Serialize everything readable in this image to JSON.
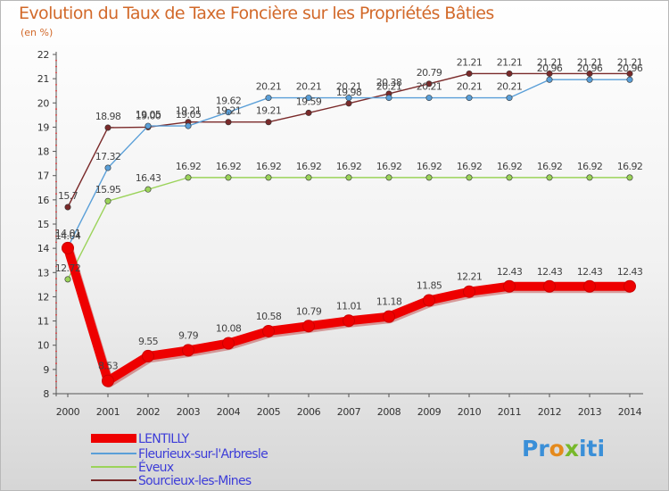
{
  "chart_data": {
    "type": "line",
    "title": "Evolution du Taux de Taxe Foncière sur les Propriétés Bâties",
    "ylabel": "(en %)",
    "xlabel": "",
    "x": [
      "2000",
      "2001",
      "2002",
      "2003",
      "2004",
      "2005",
      "2006",
      "2007",
      "2008",
      "2009",
      "2010",
      "2011",
      "2012",
      "2013",
      "2014"
    ],
    "ylim": [
      8,
      22
    ],
    "yticks": [
      "8",
      "9",
      "10",
      "11",
      "12",
      "13",
      "14",
      "15",
      "16",
      "17",
      "18",
      "19",
      "20",
      "21",
      "22"
    ],
    "grid": false,
    "legend_position": "bottom-left",
    "series": [
      {
        "name": "LENTILLY",
        "color": "#ee0000",
        "values": [
          14.01,
          8.53,
          9.55,
          9.79,
          10.08,
          10.58,
          10.79,
          11.01,
          11.18,
          11.85,
          12.21,
          12.43,
          12.43,
          12.43,
          12.43
        ],
        "labels": [
          "14.01",
          "8.53",
          "9.55",
          "9.79",
          "10.08",
          "10.58",
          "10.79",
          "11.01",
          "11.18",
          "11.85",
          "12.21",
          "12.43",
          "12.43",
          "12.43",
          "12.43"
        ]
      },
      {
        "name": "Fleurieux-sur-l'Arbresle",
        "color": "#5a9fd8",
        "values": [
          14.04,
          17.32,
          19.05,
          19.05,
          19.62,
          20.21,
          20.21,
          20.21,
          20.21,
          20.21,
          20.21,
          20.21,
          20.96,
          20.96,
          20.96
        ],
        "labels": [
          "14.04",
          "17.32",
          "19.05",
          "19.05",
          "19.62",
          "20.21",
          "20.21",
          "20.21",
          "20.21",
          "20.21",
          "20.21",
          "20.21",
          "20.96",
          "20.96",
          "20.96"
        ]
      },
      {
        "name": "Éveux",
        "color": "#9bd35a",
        "values": [
          12.72,
          15.95,
          16.43,
          16.92,
          16.92,
          16.92,
          16.92,
          16.92,
          16.92,
          16.92,
          16.92,
          16.92,
          16.92,
          16.92,
          16.92
        ],
        "labels": [
          "12.72",
          "15.95",
          "16.43",
          "16.92",
          "16.92",
          "16.92",
          "16.92",
          "16.92",
          "16.92",
          "16.92",
          "16.92",
          "16.92",
          "16.92",
          "16.92",
          "16.92"
        ]
      },
      {
        "name": "Sourcieux-les-Mines",
        "color": "#7a2a2a",
        "values": [
          15.7,
          18.98,
          19.0,
          19.21,
          19.21,
          19.21,
          19.59,
          19.98,
          20.38,
          20.79,
          21.21,
          21.21,
          21.21,
          21.21,
          21.21
        ],
        "labels": [
          "15.7",
          "18.98",
          "19.00",
          "19.21",
          "19.21",
          "19.21",
          "19.59",
          "19.98",
          "20.38",
          "20.79",
          "21.21",
          "21.21",
          "21.21",
          "21.21",
          "21.21"
        ]
      }
    ]
  },
  "brand": {
    "part1": "Pr",
    "part2": "o",
    "part3": "x",
    "part4": "iti"
  }
}
